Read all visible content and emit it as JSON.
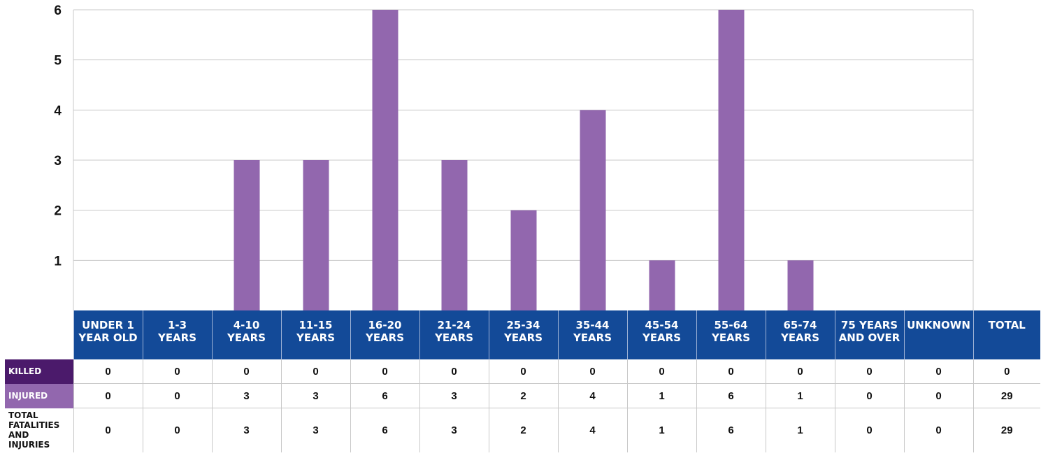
{
  "chart_data": {
    "type": "bar",
    "categories": [
      "UNDER 1 YEAR OLD",
      "1-3 YEARS",
      "4-10 YEARS",
      "11-15 YEARS",
      "16-20 YEARS",
      "21-24 YEARS",
      "25-34 YEARS",
      "35-44 YEARS",
      "45-54 YEARS",
      "55-64 YEARS",
      "65-74 YEARS",
      "75 YEARS AND OVER",
      "UNKNOWN"
    ],
    "series": [
      {
        "values": [
          0,
          0,
          3,
          3,
          6,
          3,
          2,
          4,
          1,
          6,
          1,
          0,
          0
        ]
      }
    ],
    "y_ticks": [
      "1",
      "2",
      "3",
      "4",
      "5",
      "6"
    ],
    "ylim": [
      0,
      6
    ],
    "grid": true,
    "bar_color": "#9267ae"
  },
  "table": {
    "headers": [
      "UNDER 1\nYEAR OLD",
      "1-3\nYEARS",
      "4-10\nYEARS",
      "11-15\nYEARS",
      "16-20\nYEARS",
      "21-24\nYEARS",
      "25-34\nYEARS",
      "35-44\nYEARS",
      "45-54\nYEARS",
      "55-64\nYEARS",
      "65-74\nYEARS",
      "75 YEARS\nAND OVER",
      "UNKNOWN",
      "TOTAL"
    ],
    "rows": [
      {
        "label": "KILLED",
        "values": [
          "0",
          "0",
          "0",
          "0",
          "0",
          "0",
          "0",
          "0",
          "0",
          "0",
          "0",
          "0",
          "0",
          "0"
        ]
      },
      {
        "label": "INJURED",
        "values": [
          "0",
          "0",
          "3",
          "3",
          "6",
          "3",
          "2",
          "4",
          "1",
          "6",
          "1",
          "0",
          "0",
          "29"
        ]
      },
      {
        "label": "TOTAL\nFATALITIES\nAND INJURIES",
        "values": [
          "0",
          "0",
          "3",
          "3",
          "6",
          "3",
          "2",
          "4",
          "1",
          "6",
          "1",
          "0",
          "0",
          "29"
        ]
      }
    ],
    "colors": {
      "header": "#134a98",
      "killed": "#4b1a6b",
      "injured": "#9267ae"
    }
  }
}
